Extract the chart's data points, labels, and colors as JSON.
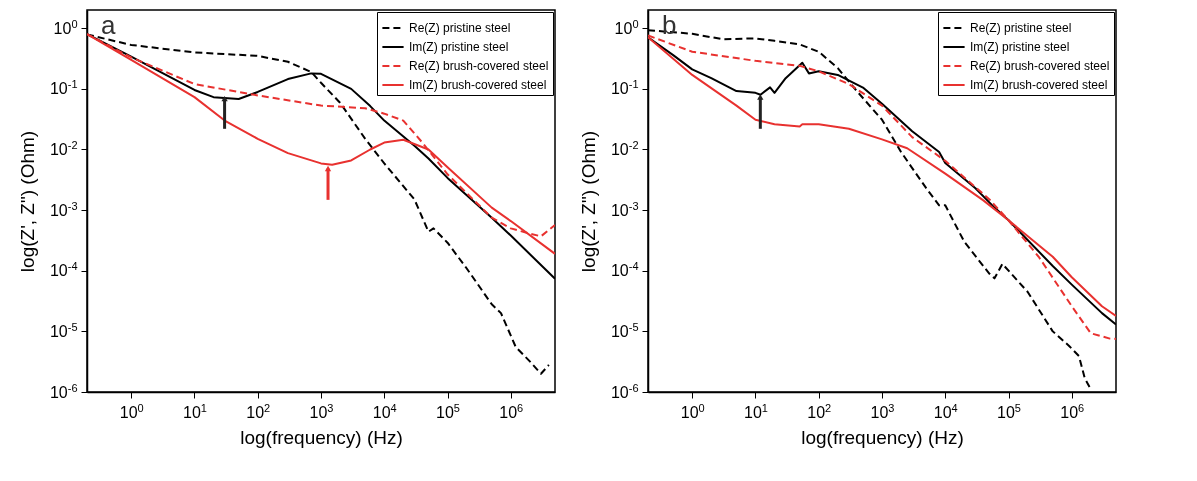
{
  "chart_data": [
    {
      "type": "line",
      "annotations": [
        "a"
      ],
      "xlabel": "log(frequency) (Hz)",
      "ylabel": "log(Z', Z\")  (Ohm)",
      "log": "xy",
      "grid": false,
      "legend": "top right",
      "marker": "none",
      "xlim": [
        0.2,
        5000000
      ],
      "ylim": [
        1e-06,
        2
      ],
      "xticks": [
        {
          "value": 1,
          "label": "10$^{0}$"
        },
        {
          "value": 10,
          "label": "10$^{1}$"
        },
        {
          "value": 100,
          "label": "10$^{2}$"
        },
        {
          "value": 1000,
          "label": "10$^{3}$"
        },
        {
          "value": 10000,
          "label": "10$^{4}$"
        },
        {
          "value": 100000,
          "label": "10$^{5}$"
        },
        {
          "value": 1000000,
          "label": "10$^{6}$"
        }
      ],
      "yticks": [
        {
          "value": 1e-06,
          "label": "10$^{-6}$"
        },
        {
          "value": 1e-05,
          "label": "10$^{-5}$"
        },
        {
          "value": 0.0001,
          "label": "10$^{-4}$"
        },
        {
          "value": 0.001,
          "label": "10$^{-3}$"
        },
        {
          "value": 0.01,
          "label": "10$^{-2}$"
        },
        {
          "value": 0.1,
          "label": "10$^{-1}$"
        },
        {
          "value": 1,
          "label": "10$^{0}$"
        }
      ],
      "series": [
        {
          "name": "Re(Z) pristine steel",
          "color": "#000000",
          "line_style": "dashed",
          "x": [
            0.2,
            1,
            10,
            100,
            300,
            700,
            1000,
            2000,
            5000,
            10000,
            30000,
            50000,
            60000,
            100000,
            200000,
            500000,
            700000,
            1200000,
            2000000,
            3000000,
            4000000
          ],
          "values": [
            0.79,
            0.53,
            0.4,
            0.35,
            0.28,
            0.19,
            0.126,
            0.059,
            0.015,
            0.0059,
            0.0015,
            0.00044,
            0.0005,
            0.00029,
            0.00011,
            2.8e-05,
            2e-05,
            5.5e-06,
            3.2e-06,
            2e-06,
            2.8e-06
          ]
        },
        {
          "name": "Im(Z) pristine steel",
          "color": "#000000",
          "line_style": "solid",
          "x": [
            0.2,
            1,
            10,
            20,
            50,
            100,
            300,
            700,
            1000,
            3000,
            6000,
            10000,
            30000,
            50000,
            100000,
            500000,
            1000000,
            5000000
          ],
          "values": [
            0.8,
            0.34,
            0.096,
            0.073,
            0.068,
            0.089,
            0.145,
            0.18,
            0.177,
            0.1,
            0.052,
            0.03,
            0.0115,
            0.0071,
            0.0034,
            0.00075,
            0.00038,
            7.4e-05
          ]
        },
        {
          "name": "Re(Z) brush-covered steel",
          "color": "#e8312f",
          "line_style": "dashed",
          "x": [
            0.2,
            1,
            10,
            100,
            1000,
            5000,
            10000,
            20000,
            40000,
            100000,
            500000,
            1000000,
            2000000,
            3000000,
            5000000
          ],
          "values": [
            0.8,
            0.33,
            0.12,
            0.078,
            0.053,
            0.048,
            0.039,
            0.03,
            0.013,
            0.0039,
            0.00075,
            0.0005,
            0.00041,
            0.00037,
            0.00057
          ]
        },
        {
          "name": "Im(Z) brush-covered steel",
          "color": "#e8312f",
          "line_style": "solid",
          "x": [
            0.2,
            1,
            10,
            30,
            100,
            300,
            1000,
            1500,
            3000,
            6000,
            10000,
            20000,
            50000,
            100000,
            500000,
            1000000,
            5000000
          ],
          "values": [
            0.8,
            0.3,
            0.073,
            0.03,
            0.015,
            0.0087,
            0.0059,
            0.0056,
            0.0066,
            0.01,
            0.013,
            0.0145,
            0.01,
            0.0051,
            0.0011,
            0.00066,
            0.00019
          ]
        }
      ]
    },
    {
      "type": "line",
      "annotations": [
        "b"
      ],
      "xlabel": "log(frequency) (Hz)",
      "ylabel": "log(Z', Z\")  (Ohm)",
      "log": "xy",
      "grid": false,
      "legend": "top right",
      "marker": "none",
      "xlim": [
        0.2,
        5000000
      ],
      "ylim": [
        1e-06,
        2
      ],
      "xticks": [
        {
          "value": 1,
          "label": "10$^{0}$"
        },
        {
          "value": 10,
          "label": "10$^{1}$"
        },
        {
          "value": 100,
          "label": "10$^{2}$"
        },
        {
          "value": 1000,
          "label": "10$^{3}$"
        },
        {
          "value": 10000,
          "label": "10$^{4}$"
        },
        {
          "value": 100000,
          "label": "10$^{5}$"
        },
        {
          "value": 1000000,
          "label": "10$^{6}$"
        }
      ],
      "yticks": [
        {
          "value": 1e-06,
          "label": "10$^{-6}$"
        },
        {
          "value": 1e-05,
          "label": "10$^{-5}$"
        },
        {
          "value": 0.0001,
          "label": "10$^{-4}$"
        },
        {
          "value": 0.001,
          "label": "10$^{-3}$"
        },
        {
          "value": 0.01,
          "label": "10$^{-2}$"
        },
        {
          "value": 0.1,
          "label": "10$^{-1}$"
        },
        {
          "value": 1,
          "label": "10$^{0}$"
        }
      ],
      "series": [
        {
          "name": "Re(Z) pristine steel",
          "color": "#000000",
          "line_style": "dashed",
          "x": [
            0.2,
            1,
            3,
            10,
            20,
            50,
            100,
            200,
            400,
            1000,
            2000,
            5000,
            8000,
            10000,
            20000,
            50000,
            60000,
            80000,
            200000,
            500000,
            900000,
            1300000,
            1600000,
            2000000
          ],
          "values": [
            0.93,
            0.81,
            0.66,
            0.68,
            0.62,
            0.54,
            0.41,
            0.22,
            0.092,
            0.031,
            0.0091,
            0.0023,
            0.0012,
            0.0012,
            0.0003,
            8.9e-05,
            7.5e-05,
            0.00013,
            4.5e-05,
            1e-05,
            5.8e-06,
            3.9e-06,
            1.7e-06,
            1.1e-06
          ]
        },
        {
          "name": "Im(Z) pristine steel",
          "color": "#000000",
          "line_style": "solid",
          "x": [
            0.2,
            0.5,
            1,
            2,
            5,
            10,
            12,
            17,
            20,
            30,
            55,
            70,
            100,
            200,
            500,
            1000,
            3000,
            8000,
            10000,
            30000,
            60000,
            100000,
            500000,
            1000000,
            3000000,
            5000000
          ],
          "values": [
            0.71,
            0.36,
            0.21,
            0.15,
            0.092,
            0.086,
            0.08,
            0.106,
            0.086,
            0.15,
            0.27,
            0.18,
            0.195,
            0.17,
            0.105,
            0.057,
            0.02,
            0.0091,
            0.006,
            0.0023,
            0.0011,
            0.00068,
            0.00012,
            5.9e-05,
            2e-05,
            1.3e-05
          ]
        },
        {
          "name": "Re(Z) brush-covered steel",
          "color": "#e8312f",
          "line_style": "dashed",
          "x": [
            0.2,
            1,
            10,
            50,
            100,
            300,
            1000,
            3000,
            10000,
            50000,
            100000,
            300000,
            1000000,
            2000000,
            4000000,
            5000000
          ],
          "values": [
            0.76,
            0.41,
            0.29,
            0.24,
            0.195,
            0.12,
            0.053,
            0.016,
            0.0065,
            0.0015,
            0.00068,
            0.00017,
            2.6e-05,
            9.3e-06,
            7.6e-06,
            7.5e-06
          ]
        },
        {
          "name": "Im(Z) brush-covered steel",
          "color": "#e8312f",
          "line_style": "solid",
          "x": [
            0.2,
            1,
            5,
            10,
            20,
            50,
            55,
            100,
            300,
            1000,
            2500,
            10000,
            40000,
            100000,
            500000,
            1000000,
            3000000,
            5000000
          ],
          "values": [
            0.71,
            0.17,
            0.053,
            0.031,
            0.026,
            0.024,
            0.026,
            0.026,
            0.022,
            0.0147,
            0.0105,
            0.004,
            0.00145,
            0.00068,
            0.00017,
            7.8e-05,
            2.6e-05,
            1.8e-05
          ]
        }
      ]
    }
  ]
}
